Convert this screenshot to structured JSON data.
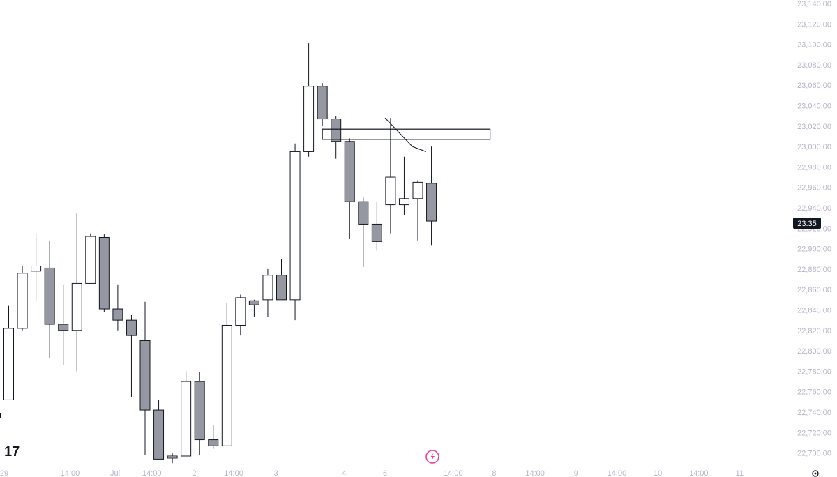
{
  "chart_data": {
    "type": "candlestick",
    "y_axis": {
      "min": 22700,
      "max": 23140,
      "ticks": [
        "23,140.00",
        "23,120.00",
        "23,100.00",
        "23,080.00",
        "23,060.00",
        "23,040.00",
        "23,020.00",
        "23,000.00",
        "22,980.00",
        "22,960.00",
        "22,940.00",
        "22,920.00",
        "22,900.00",
        "22,880.00",
        "22,860.00",
        "22,840.00",
        "22,820.00",
        "22,800.00",
        "22,780.00",
        "22,760.00",
        "22,740.00",
        "22,720.00",
        "22,700.00"
      ]
    },
    "x_axis": {
      "labels": [
        {
          "text": "29",
          "slot": -0.5
        },
        {
          "text": "14:00",
          "slot": 4.5
        },
        {
          "text": "Jul",
          "slot": 7.8
        },
        {
          "text": "14:00",
          "slot": 10.5
        },
        {
          "text": "2",
          "slot": 13.6
        },
        {
          "text": "14:00",
          "slot": 16.5
        },
        {
          "text": "3",
          "slot": 19.6
        },
        {
          "text": "4",
          "slot": 24.6
        },
        {
          "text": "6",
          "slot": 27.6
        },
        {
          "text": "14:00",
          "slot": 32.6
        },
        {
          "text": "8",
          "slot": 35.6
        },
        {
          "text": "14:00",
          "slot": 38.6
        },
        {
          "text": "9",
          "slot": 41.6
        },
        {
          "text": "14:00",
          "slot": 44.6
        },
        {
          "text": "10",
          "slot": 47.6
        },
        {
          "text": "14:00",
          "slot": 50.6
        },
        {
          "text": "11",
          "slot": 53.6
        }
      ]
    },
    "candles": [
      {
        "o": 22752,
        "h": 22844,
        "l": 22752,
        "c": 22822
      },
      {
        "o": 22822,
        "h": 22883,
        "l": 22820,
        "c": 22876
      },
      {
        "o": 22878,
        "h": 22915,
        "l": 22848,
        "c": 22883
      },
      {
        "o": 22881,
        "h": 22908,
        "l": 22793,
        "c": 22826
      },
      {
        "o": 22826,
        "h": 22865,
        "l": 22786,
        "c": 22820
      },
      {
        "o": 22820,
        "h": 22935,
        "l": 22780,
        "c": 22866
      },
      {
        "o": 22866,
        "h": 22915,
        "l": 22866,
        "c": 22912
      },
      {
        "o": 22911,
        "h": 22914,
        "l": 22838,
        "c": 22841
      },
      {
        "o": 22841,
        "h": 22865,
        "l": 22820,
        "c": 22830
      },
      {
        "o": 22830,
        "h": 22835,
        "l": 22755,
        "c": 22815
      },
      {
        "o": 22810,
        "h": 22848,
        "l": 22698,
        "c": 22742
      },
      {
        "o": 22742,
        "h": 22752,
        "l": 22694,
        "c": 22694
      },
      {
        "o": 22695,
        "h": 22700,
        "l": 22690,
        "c": 22697
      },
      {
        "o": 22697,
        "h": 22780,
        "l": 22697,
        "c": 22770
      },
      {
        "o": 22770,
        "h": 22779,
        "l": 22698,
        "c": 22713
      },
      {
        "o": 22713,
        "h": 22727,
        "l": 22704,
        "c": 22707
      },
      {
        "o": 22707,
        "h": 22847,
        "l": 22707,
        "c": 22825
      },
      {
        "o": 22825,
        "h": 22855,
        "l": 22815,
        "c": 22852
      },
      {
        "o": 22849,
        "h": 22850,
        "l": 22833,
        "c": 22845
      },
      {
        "o": 22850,
        "h": 22880,
        "l": 22833,
        "c": 22874
      },
      {
        "o": 22874,
        "h": 22890,
        "l": 22850,
        "c": 22850
      },
      {
        "o": 22850,
        "h": 23003,
        "l": 22830,
        "c": 22995
      },
      {
        "o": 22995,
        "h": 23101,
        "l": 22990,
        "c": 23059
      },
      {
        "o": 23059,
        "h": 23062,
        "l": 23020,
        "c": 23027
      },
      {
        "o": 23027,
        "h": 23030,
        "l": 22988,
        "c": 23005
      },
      {
        "o": 23005,
        "h": 23008,
        "l": 22910,
        "c": 22946
      },
      {
        "o": 22946,
        "h": 22950,
        "l": 22882,
        "c": 22924
      },
      {
        "o": 22924,
        "h": 22946,
        "l": 22898,
        "c": 22907
      },
      {
        "o": 22943,
        "h": 23028,
        "l": 22915,
        "c": 22970
      },
      {
        "o": 22943,
        "h": 22990,
        "l": 22933,
        "c": 22949
      },
      {
        "o": 22949,
        "h": 22967,
        "l": 22908,
        "c": 22965
      },
      {
        "o": 22964,
        "h": 23000,
        "l": 22903,
        "c": 22927
      }
    ],
    "rectangle": {
      "x1": 23.0,
      "x2": 35.3,
      "top": 23017,
      "bottom": 23007
    },
    "trend_lines": [
      {
        "x1": 27.6,
        "y1": 23028,
        "x2": 29.6,
        "y2": 23000
      },
      {
        "x1": 29.6,
        "y1": 23000,
        "x2": 30.6,
        "y2": 22995
      }
    ],
    "price_tag": "23:35",
    "price_tag_value": 22925,
    "colors": {
      "up_body": "#ffffff",
      "down_body": "#9598a1",
      "outline": "#131722",
      "axis_text": "#b8b2c9",
      "tag_bg": "#131722",
      "flash_icon": "#e040a0"
    }
  },
  "branding": {
    "logo": "17"
  },
  "icons": {
    "flash": "flash-icon",
    "settings": "settings-gear-icon"
  }
}
